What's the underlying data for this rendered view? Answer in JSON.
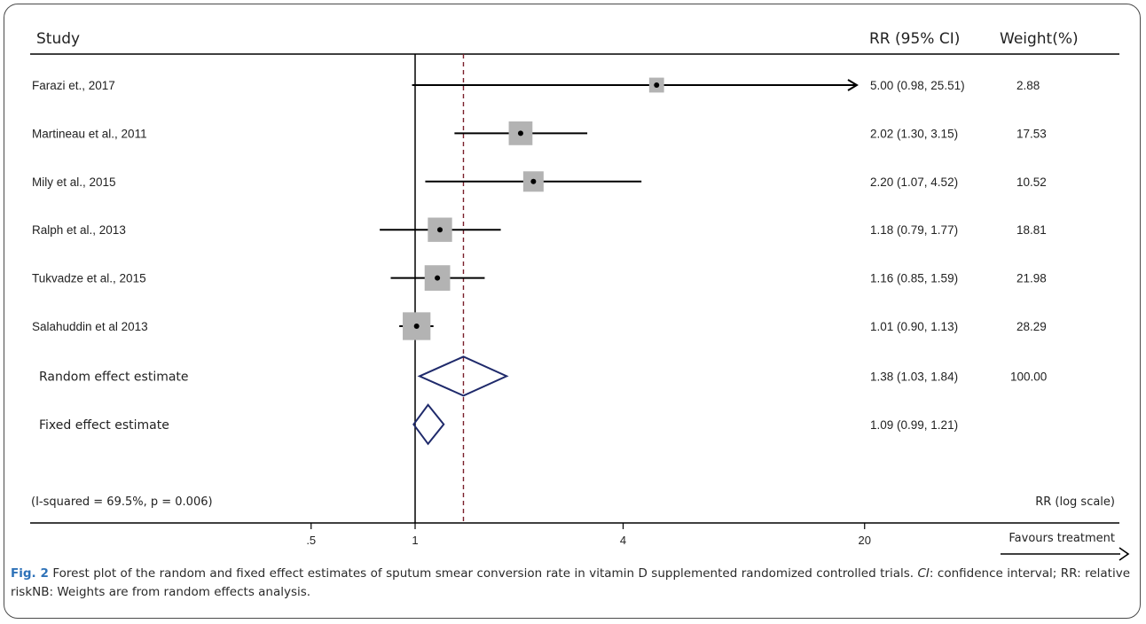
{
  "chart_data": {
    "type": "forest",
    "x_scale": "log",
    "xlabel": "RR (log scale)",
    "x_ticks": [
      {
        "value": 0.5,
        "label": ".5"
      },
      {
        "value": 1,
        "label": "1"
      },
      {
        "value": 4,
        "label": "4"
      },
      {
        "value": 20,
        "label": "20"
      }
    ],
    "null_line": 1,
    "overall_line": 1.38,
    "columns": {
      "study": "Study",
      "rr": "RR (95% CI)",
      "weight": "Weight(%)"
    },
    "studies": [
      {
        "name": "Farazi et., 2017",
        "rr": 5.0,
        "lo": 0.98,
        "hi": 25.51,
        "text": "5.00 (0.98, 25.51)",
        "weight": "2.88",
        "w": 2.88,
        "arrow": true
      },
      {
        "name": "Martineau et al., 2011",
        "rr": 2.02,
        "lo": 1.3,
        "hi": 3.15,
        "text": "2.02 (1.30, 3.15)",
        "weight": "17.53",
        "w": 17.53
      },
      {
        "name": "Mily et al., 2015",
        "rr": 2.2,
        "lo": 1.07,
        "hi": 4.52,
        "text": "2.20 (1.07, 4.52)",
        "weight": "10.52",
        "w": 10.52
      },
      {
        "name": "Ralph et al., 2013",
        "rr": 1.18,
        "lo": 0.79,
        "hi": 1.77,
        "text": "1.18 (0.79, 1.77)",
        "weight": "18.81",
        "w": 18.81
      },
      {
        "name": "Tukvadze et al., 2015",
        "rr": 1.16,
        "lo": 0.85,
        "hi": 1.59,
        "text": "1.16 (0.85, 1.59)",
        "weight": "21.98",
        "w": 21.98
      },
      {
        "name": "Salahuddin et al 2013",
        "rr": 1.01,
        "lo": 0.9,
        "hi": 1.13,
        "text": "1.01 (0.90, 1.13)",
        "weight": "28.29",
        "w": 28.29
      }
    ],
    "summaries": [
      {
        "name": "Random effect estimate",
        "rr": 1.38,
        "lo": 1.03,
        "hi": 1.84,
        "text": "1.38 (1.03, 1.84)",
        "weight": "100.00"
      },
      {
        "name": "Fixed effect estimate",
        "rr": 1.09,
        "lo": 0.99,
        "hi": 1.21,
        "text": "1.09 (0.99, 1.21)",
        "weight": ""
      }
    ],
    "heterogeneity": "(I-squared = 69.5%, p = 0.006)",
    "favours": "Favours treatment",
    "colors": {
      "box": "#b3b3b3",
      "diamond": "#1f2a6b",
      "ref_line": "#7a1f2b",
      "line": "#000000"
    }
  },
  "caption": {
    "label": "Fig. 2",
    "text": " Forest plot of the random and fixed effect estimates of sputum smear conversion rate in vitamin D supplemented randomized controlled trials. ",
    "ci_abbr": "CI",
    "rest": ": confidence interval; RR: relative riskNB: Weights are from random effects analysis."
  }
}
